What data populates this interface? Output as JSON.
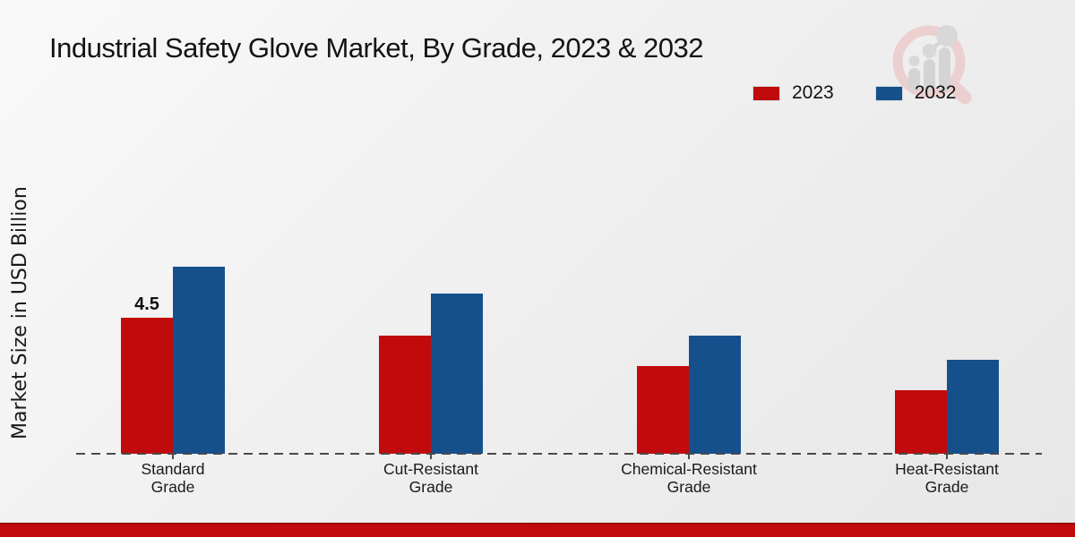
{
  "title": "Industrial Safety Glove Market, By Grade, 2023 & 2032",
  "chart_data": {
    "type": "bar",
    "title": "Industrial Safety Glove Market, By Grade, 2023 & 2032",
    "ylabel": "Market Size in USD Billion",
    "xlabel": "",
    "categories": [
      "Standard Grade",
      "Cut-Resistant Grade",
      "Chemical-Resistant Grade",
      "Heat-Resistant Grade"
    ],
    "series": [
      {
        "name": "2023",
        "color": "#c00a0c",
        "values": [
          4.5,
          3.9,
          2.9,
          2.1
        ]
      },
      {
        "name": "2032",
        "color": "#15508d",
        "values": [
          6.2,
          5.3,
          3.9,
          3.1
        ]
      }
    ],
    "data_labels": [
      {
        "series": "2023",
        "category": "Standard Grade",
        "text": "4.5"
      }
    ],
    "legend_position": "top-right",
    "grid": false,
    "baseline_style": "dashed",
    "ylim": [
      0,
      7
    ]
  },
  "icons": {
    "logo": "magnifier-growth-chart-watermark"
  },
  "footer": {
    "bar_color": "#c00a0c"
  }
}
